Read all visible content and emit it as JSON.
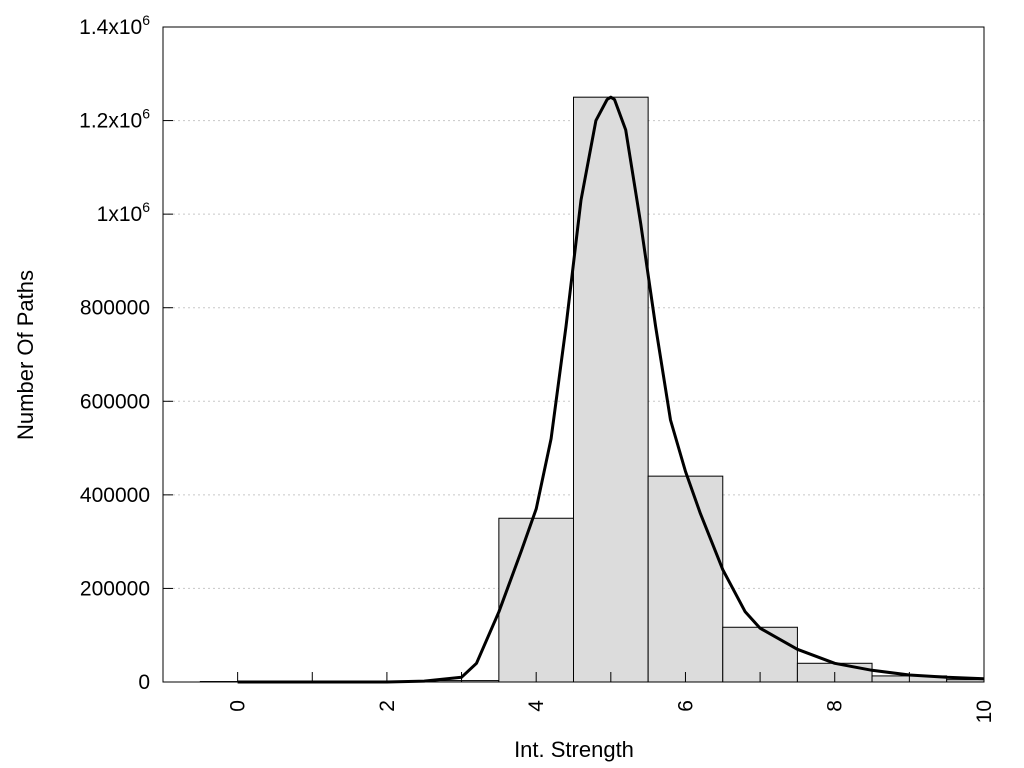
{
  "chart_data": {
    "type": "bar",
    "xlabel": "Int. Strength",
    "ylabel": "Number Of Paths",
    "xlim": [
      -1,
      10
    ],
    "ylim": [
      0,
      1400000
    ],
    "grid": true,
    "x_ticks": [
      {
        "value": 0,
        "label": "0"
      },
      {
        "value": 2,
        "label": "2"
      },
      {
        "value": 4,
        "label": "4"
      },
      {
        "value": 6,
        "label": "6"
      },
      {
        "value": 8,
        "label": "8"
      },
      {
        "value": 10,
        "label": "10"
      }
    ],
    "y_ticks": [
      {
        "value": 0,
        "label": "0"
      },
      {
        "value": 200000,
        "label": "200000"
      },
      {
        "value": 400000,
        "label": "400000"
      },
      {
        "value": 600000,
        "label": "600000"
      },
      {
        "value": 800000,
        "label": "800000"
      },
      {
        "value": 1000000,
        "label": "1x10",
        "sup": "6"
      },
      {
        "value": 1200000,
        "label": "1.2x10",
        "sup": "6"
      },
      {
        "value": 1400000,
        "label": "1.4x10",
        "sup": "6"
      }
    ],
    "bars": [
      {
        "x": 0,
        "value": 1000
      },
      {
        "x": 1,
        "value": 1000
      },
      {
        "x": 2,
        "value": 1000
      },
      {
        "x": 3,
        "value": 3000
      },
      {
        "x": 4,
        "value": 350000
      },
      {
        "x": 5,
        "value": 1250000
      },
      {
        "x": 6,
        "value": 440000
      },
      {
        "x": 7,
        "value": 117000
      },
      {
        "x": 8,
        "value": 40000
      },
      {
        "x": 9,
        "value": 13000
      },
      {
        "x": 10,
        "value": 5000
      }
    ],
    "bar_width": 1,
    "curve": {
      "x": [
        0,
        1,
        2,
        2.5,
        3,
        3.2,
        3.5,
        3.8,
        4.0,
        4.2,
        4.4,
        4.6,
        4.8,
        4.95,
        5.0,
        5.05,
        5.2,
        5.4,
        5.6,
        5.8,
        6.0,
        6.2,
        6.5,
        6.8,
        7.0,
        7.5,
        8.0,
        8.5,
        9.0,
        9.5,
        10.0
      ],
      "y": [
        0,
        0,
        0,
        2000,
        10000,
        40000,
        150000,
        280000,
        370000,
        520000,
        760000,
        1030000,
        1200000,
        1245000,
        1250000,
        1245000,
        1180000,
        980000,
        760000,
        560000,
        450000,
        360000,
        240000,
        150000,
        115000,
        70000,
        40000,
        25000,
        15000,
        10000,
        7000
      ]
    }
  }
}
